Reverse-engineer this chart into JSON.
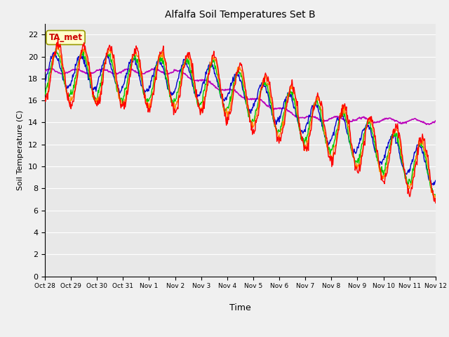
{
  "title": "Alfalfa Soil Temperatures Set B",
  "xlabel": "Time",
  "ylabel": "Soil Temperature (C)",
  "ylim": [
    0,
    23
  ],
  "yticks": [
    0,
    2,
    4,
    6,
    8,
    10,
    12,
    14,
    16,
    18,
    20,
    22
  ],
  "annotation": "TA_met",
  "annotation_color": "#cc0000",
  "annotation_bg": "#ffffcc",
  "annotation_edge": "#999900",
  "line_colors": {
    "-2cm": "#ff0000",
    "-4cm": "#ff8800",
    "-8cm": "#00cc00",
    "-16cm": "#0000cc",
    "-32cm": "#bb00bb"
  },
  "xtick_labels": [
    "Oct 28",
    "Oct 29",
    "Oct 30",
    "Oct 31",
    "Nov 1",
    "Nov 2",
    "Nov 3",
    "Nov 4",
    "Nov 5",
    "Nov 6",
    "Nov 7",
    "Nov 8",
    "Nov 9",
    "Nov 10",
    "Nov 11",
    "Nov 12"
  ],
  "fig_bg": "#f0f0f0",
  "plot_bg": "#e8e8e8",
  "grid_color": "#ffffff"
}
